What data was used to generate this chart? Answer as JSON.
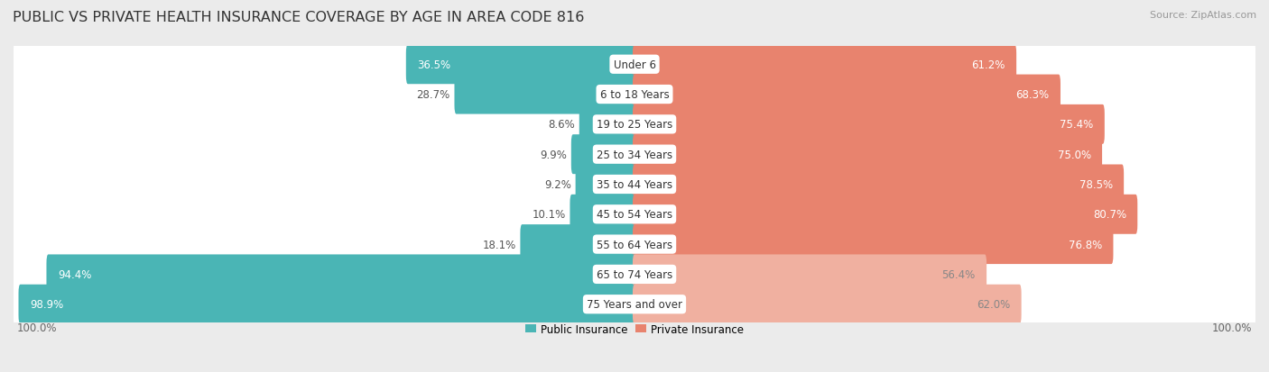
{
  "title": "PUBLIC VS PRIVATE HEALTH INSURANCE COVERAGE BY AGE IN AREA CODE 816",
  "source": "Source: ZipAtlas.com",
  "categories": [
    "Under 6",
    "6 to 18 Years",
    "19 to 25 Years",
    "25 to 34 Years",
    "35 to 44 Years",
    "45 to 54 Years",
    "55 to 64 Years",
    "65 to 74 Years",
    "75 Years and over"
  ],
  "public_values": [
    36.5,
    28.7,
    8.6,
    9.9,
    9.2,
    10.1,
    18.1,
    94.4,
    98.9
  ],
  "private_values": [
    61.2,
    68.3,
    75.4,
    75.0,
    78.5,
    80.7,
    76.8,
    56.4,
    62.0
  ],
  "public_color": "#4ab5b5",
  "private_color": "#e8836e",
  "private_color_light": "#f0b0a0",
  "bg_color": "#ebebeb",
  "row_bg_color": "#f5f5f5",
  "legend_public": "Public Insurance",
  "legend_private": "Private Insurance",
  "x_left_label": "100.0%",
  "x_right_label": "100.0%",
  "title_fontsize": 11.5,
  "source_fontsize": 8,
  "label_fontsize": 8.5,
  "category_fontsize": 8.5,
  "value_fontsize": 8.5
}
